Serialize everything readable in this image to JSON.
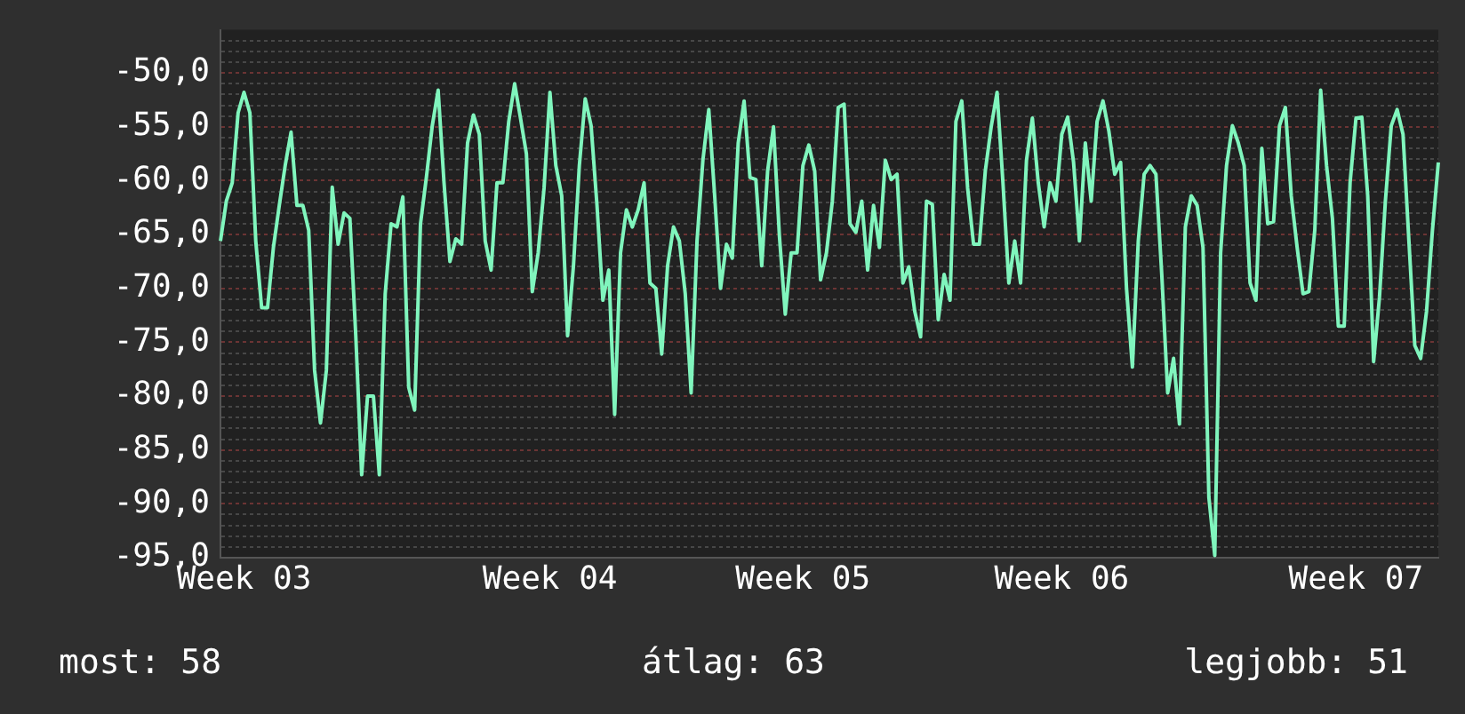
{
  "chart_data": {
    "type": "line",
    "categories": [
      null,
      null,
      null,
      null,
      "Week 03",
      null,
      null,
      null,
      null,
      null,
      null,
      null,
      null,
      null,
      null,
      null,
      null,
      null,
      null,
      null,
      null,
      null,
      null,
      null,
      null,
      null,
      null,
      null,
      null,
      null,
      null,
      null,
      null,
      null,
      null,
      null,
      null,
      null,
      null,
      null,
      null,
      null,
      null,
      null,
      null,
      null,
      null,
      null,
      null,
      null,
      null,
      null,
      null,
      null,
      null,
      null,
      "Week 04",
      null,
      null,
      null,
      null,
      null,
      null,
      null,
      null,
      null,
      null,
      null,
      null,
      null,
      null,
      null,
      null,
      null,
      null,
      null,
      null,
      null,
      null,
      null,
      null,
      null,
      null,
      null,
      null,
      null,
      null,
      null,
      null,
      null,
      null,
      null,
      null,
      null,
      null,
      null,
      null,
      null,
      null,
      "Week 05",
      null,
      null,
      null,
      null,
      null,
      null,
      null,
      null,
      null,
      null,
      null,
      null,
      null,
      null,
      null,
      null,
      null,
      null,
      null,
      null,
      null,
      null,
      null,
      null,
      null,
      null,
      null,
      null,
      null,
      null,
      null,
      null,
      null,
      null,
      null,
      null,
      null,
      null,
      null,
      null,
      null,
      null,
      null,
      "Week 06",
      null,
      null,
      null,
      null,
      null,
      null,
      null,
      null,
      null,
      null,
      null,
      null,
      null,
      null,
      null,
      null,
      null,
      null,
      null,
      null,
      null,
      null,
      null,
      null,
      null,
      null,
      null,
      null,
      null,
      null,
      null,
      null,
      null,
      null,
      null,
      null,
      null,
      null,
      null,
      null,
      null,
      null,
      null,
      null,
      null,
      null,
      null,
      null,
      null,
      "Week 07",
      null,
      null,
      null,
      null,
      null,
      null,
      null,
      null,
      null,
      null,
      null,
      null,
      null,
      null
    ],
    "series": [
      {
        "color": "#80f5bd",
        "values": [
          -65.6,
          -61.9,
          -60.2,
          -53.7,
          -51.8,
          -53.7,
          -65.6,
          -71.8,
          -71.8,
          -66.2,
          -62.3,
          -58.6,
          -55.5,
          -62.3,
          -62.3,
          -64.6,
          -77.6,
          -82.5,
          -77.6,
          -60.6,
          -65.9,
          -63.0,
          -63.5,
          -74.4,
          -87.3,
          -80.0,
          -80.0,
          -87.3,
          -70.5,
          -64.0,
          -64.3,
          -61.5,
          -79.2,
          -81.3,
          -64.0,
          -59.7,
          -54.9,
          -51.6,
          -60.2,
          -67.5,
          -65.4,
          -65.9,
          -56.5,
          -53.9,
          -55.7,
          -65.6,
          -68.3,
          -60.2,
          -60.2,
          -54.5,
          -51.0,
          -54.2,
          -57.5,
          -70.3,
          -66.7,
          -60.7,
          -51.8,
          -58.6,
          -61.4,
          -74.4,
          -67.9,
          -58.6,
          -52.4,
          -54.9,
          -62.3,
          -71.1,
          -68.3,
          -81.7,
          -66.7,
          -62.7,
          -64.3,
          -62.7,
          -60.2,
          -69.5,
          -70.0,
          -76.1,
          -67.9,
          -64.3,
          -65.6,
          -70.5,
          -79.7,
          -65.6,
          -58.1,
          -53.4,
          -61.4,
          -70.0,
          -65.9,
          -67.2,
          -56.5,
          -52.6,
          -59.7,
          -59.9,
          -67.9,
          -59.1,
          -55.0,
          -65.1,
          -72.4,
          -66.7,
          -66.7,
          -58.6,
          -56.7,
          -59.1,
          -69.2,
          -66.7,
          -61.9,
          -53.2,
          -52.9,
          -64.0,
          -64.8,
          -61.9,
          -68.3,
          -62.3,
          -66.2,
          -58.1,
          -59.9,
          -59.4,
          -69.5,
          -68.0,
          -72.1,
          -74.5,
          -61.9,
          -62.2,
          -72.9,
          -68.7,
          -71.1,
          -54.5,
          -52.6,
          -60.7,
          -65.9,
          -65.9,
          -59.1,
          -55.0,
          -51.8,
          -60.2,
          -69.5,
          -65.6,
          -69.5,
          -58.1,
          -54.2,
          -60.2,
          -64.3,
          -60.2,
          -61.9,
          -55.7,
          -54.1,
          -58.3,
          -65.6,
          -56.5,
          -61.9,
          -54.5,
          -52.6,
          -55.4,
          -59.4,
          -58.3,
          -70.0,
          -77.3,
          -65.6,
          -59.4,
          -58.6,
          -59.4,
          -68.8,
          -79.7,
          -76.5,
          -82.6,
          -64.3,
          -61.4,
          -62.3,
          -66.2,
          -89.4,
          -94.8,
          -66.7,
          -58.6,
          -54.9,
          -56.5,
          -58.6,
          -69.5,
          -71.1,
          -57.0,
          -64.0,
          -63.8,
          -54.9,
          -53.2,
          -61.4,
          -66.2,
          -70.5,
          -70.3,
          -64.6,
          -51.6,
          -58.6,
          -63.5,
          -73.5,
          -73.5,
          -60.2,
          -54.2,
          -54.1,
          -61.4,
          -76.8,
          -70.8,
          -61.9,
          -54.9,
          -53.4,
          -55.7,
          -65.6,
          -75.3,
          -76.5,
          -72.1,
          -64.6,
          -58.3
        ]
      }
    ],
    "ylim": [
      -95,
      -46
    ],
    "yticks": [
      {
        "value": -95,
        "label": "-95,0"
      },
      {
        "value": -94,
        "label": null
      },
      {
        "value": -93,
        "label": null
      },
      {
        "value": -92,
        "label": null
      },
      {
        "value": -91,
        "label": null
      },
      {
        "value": -90,
        "label": "-90,0"
      },
      {
        "value": -89,
        "label": null
      },
      {
        "value": -88,
        "label": null
      },
      {
        "value": -87,
        "label": null
      },
      {
        "value": -86,
        "label": null
      },
      {
        "value": -85,
        "label": "-85,0"
      },
      {
        "value": -84,
        "label": null
      },
      {
        "value": -83,
        "label": null
      },
      {
        "value": -82,
        "label": null
      },
      {
        "value": -81,
        "label": null
      },
      {
        "value": -80,
        "label": "-80,0"
      },
      {
        "value": -79,
        "label": null
      },
      {
        "value": -78,
        "label": null
      },
      {
        "value": -77,
        "label": null
      },
      {
        "value": -76,
        "label": null
      },
      {
        "value": -75,
        "label": "-75,0"
      },
      {
        "value": -74,
        "label": null
      },
      {
        "value": -73,
        "label": null
      },
      {
        "value": -72,
        "label": null
      },
      {
        "value": -71,
        "label": null
      },
      {
        "value": -70,
        "label": "-70,0"
      },
      {
        "value": -69,
        "label": null
      },
      {
        "value": -68,
        "label": null
      },
      {
        "value": -67,
        "label": null
      },
      {
        "value": -66,
        "label": null
      },
      {
        "value": -65,
        "label": "-65,0"
      },
      {
        "value": -64,
        "label": null
      },
      {
        "value": -63,
        "label": null
      },
      {
        "value": -62,
        "label": null
      },
      {
        "value": -61,
        "label": null
      },
      {
        "value": -60,
        "label": "-60,0"
      },
      {
        "value": -59,
        "label": null
      },
      {
        "value": -58,
        "label": null
      },
      {
        "value": -57,
        "label": null
      },
      {
        "value": -56,
        "label": null
      },
      {
        "value": -55,
        "label": "-55,0"
      },
      {
        "value": -54,
        "label": null
      },
      {
        "value": -53,
        "label": null
      },
      {
        "value": -52,
        "label": null
      },
      {
        "value": -51,
        "label": null
      },
      {
        "value": -50,
        "label": "-50,0"
      },
      {
        "value": -49,
        "label": null
      },
      {
        "value": -48,
        "label": null
      },
      {
        "value": -47,
        "label": null
      }
    ],
    "grid": "y",
    "legend": false,
    "annotations": [
      "most: 58",
      "átlag: 63",
      "legjobb: 51"
    ]
  }
}
